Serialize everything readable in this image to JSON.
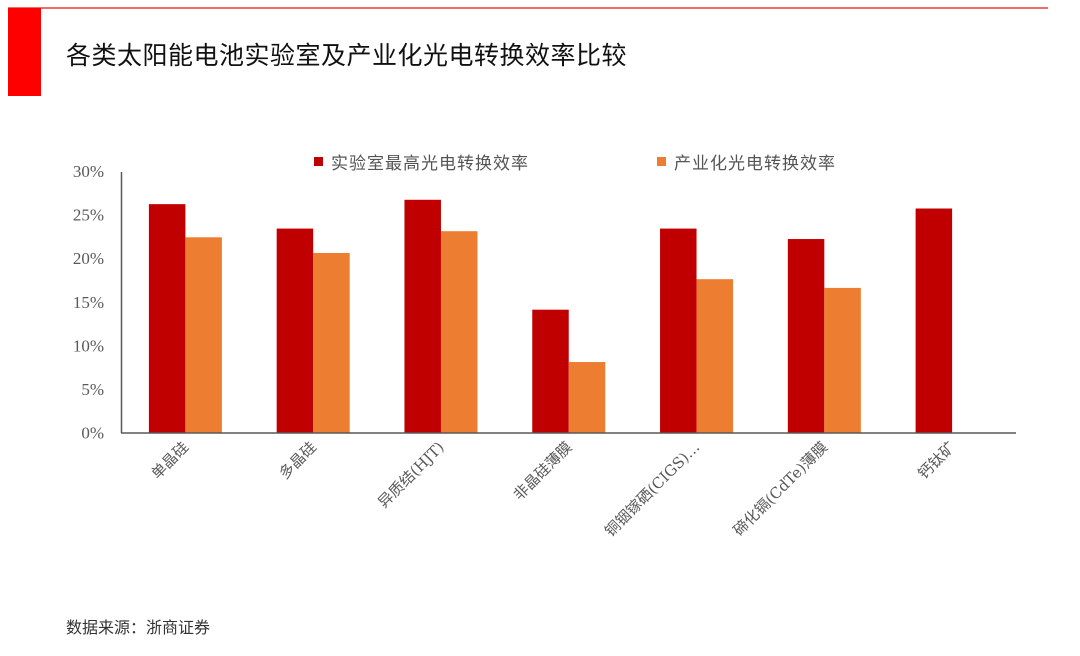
{
  "page": {
    "title": "各类太阳能电池实验室及产业化光电转换效率比较",
    "source": "数据来源：浙商证券"
  },
  "colors": {
    "lab": "#C00000",
    "industrial": "#ED7D31",
    "accent": "#FF0000",
    "axis": "#595959",
    "tick_text": "#595959"
  },
  "legend": {
    "items": [
      {
        "label": "实验室最高光电转换效率",
        "color": "#C00000"
      },
      {
        "label": "产业化光电转换效率",
        "color": "#ED7D31"
      }
    ]
  },
  "chart_data": {
    "type": "bar",
    "title": "各类太阳能电池实验室及产业化光电转换效率比较",
    "xlabel": "",
    "ylabel": "",
    "ylim": [
      0,
      30
    ],
    "yticks": [
      "0%",
      "5%",
      "10%",
      "15%",
      "20%",
      "25%",
      "30%"
    ],
    "grid": false,
    "legend_position": "top",
    "categories": [
      "单晶硅",
      "多晶硅",
      "异质结(HJT)",
      "非晶硅薄膜",
      "铜铟镓硒(CIGS)…",
      "碲化镉(CdTe)薄膜",
      "钙钛矿"
    ],
    "series": [
      {
        "name": "实验室最高光电转换效率",
        "values": [
          26.2,
          23.4,
          26.7,
          14.1,
          23.4,
          22.2,
          25.7
        ]
      },
      {
        "name": "产业化光电转换效率",
        "values": [
          22.4,
          20.6,
          23.1,
          8.1,
          17.6,
          16.6,
          null
        ]
      }
    ],
    "unit": "%"
  }
}
